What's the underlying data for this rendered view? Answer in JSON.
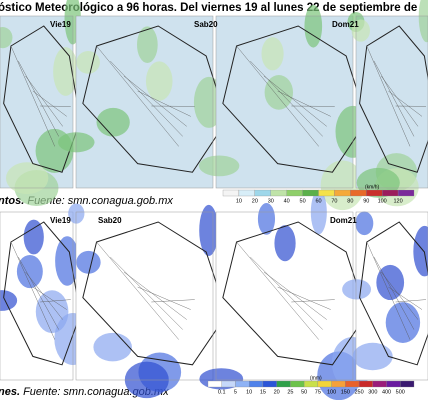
{
  "header": {
    "title": "óstico Meteorológico a 96 horas. Del viernes 19 al lunes 22 de septiembre de"
  },
  "wind": {
    "panels": [
      "Vie19",
      "Sab20",
      "Dom21"
    ],
    "caption_bold": "ntos.",
    "caption": "Fuente: smn.conagua.gob.mx",
    "legend": {
      "unit": "(km/h)",
      "ticks": [
        10,
        20,
        30,
        40,
        50,
        60,
        70,
        80,
        90,
        100,
        120
      ]
    }
  },
  "rain": {
    "panels": [
      "Vie19",
      "Sab20",
      "Dom21"
    ],
    "caption_bold": "nes.",
    "caption": "Fuente: smn.conagua.gob.mx",
    "legend": {
      "unit": "(mm)",
      "ticks": [
        0.1,
        5,
        10,
        15,
        20,
        25,
        50,
        75,
        100,
        150,
        250,
        300,
        400,
        500
      ]
    }
  }
}
